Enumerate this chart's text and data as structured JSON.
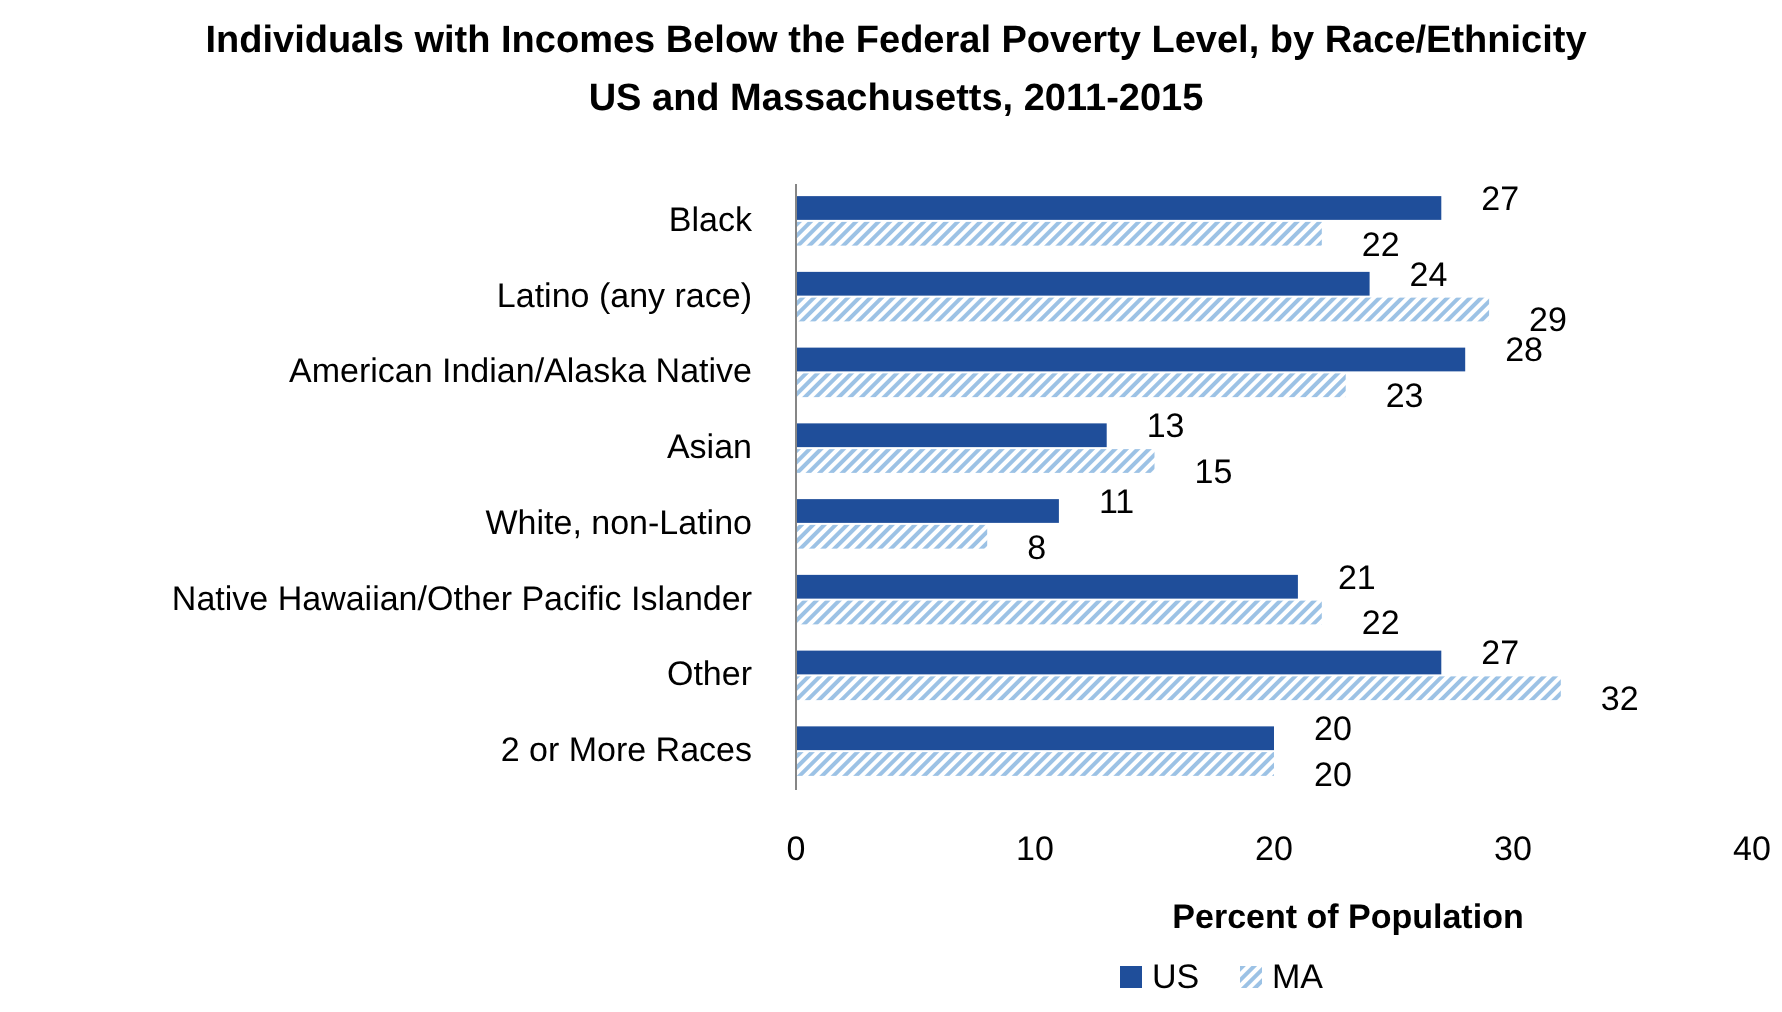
{
  "chart_data": {
    "type": "bar",
    "orientation": "horizontal",
    "title": "Individuals with Incomes Below the Federal Poverty Level, by Race/Ethnicity",
    "subtitle": "US and Massachusetts, 2011-2015",
    "xlabel": "Percent of Population",
    "categories": [
      "Black",
      "Latino (any race)",
      "American Indian/Alaska Native",
      "Asian",
      "White, non-Latino",
      "Native Hawaiian/Other Pacific Islander",
      "Other",
      "2 or More Races"
    ],
    "series": [
      {
        "name": "US",
        "color": "#1f4e9a",
        "values": [
          27,
          24,
          28,
          13,
          11,
          21,
          27,
          20
        ]
      },
      {
        "name": "MA",
        "color": "#9cc2e5",
        "values": [
          22,
          29,
          23,
          15,
          8,
          22,
          32,
          20
        ]
      }
    ],
    "xlim": [
      0,
      40
    ],
    "xticks": [
      0,
      10,
      20,
      30,
      40
    ],
    "data_labels": true,
    "legend": "bottom",
    "grid": false
  }
}
